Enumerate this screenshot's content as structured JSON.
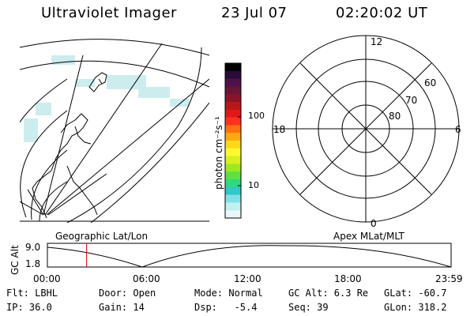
{
  "header": {
    "instrument": "Ultraviolet Imager",
    "date": "23 Jul 07",
    "time": "02:20:02 UT"
  },
  "left_panel": {
    "label": "Geographic Lat/Lon"
  },
  "colorbar": {
    "unit_label": "photon cm⁻²s⁻¹",
    "ticks": [
      "100",
      "10"
    ],
    "colors": [
      "#000000",
      "#2a0a3a",
      "#50104a",
      "#6a1438",
      "#8a1428",
      "#b81818",
      "#e01818",
      "#ff3020",
      "#ff7010",
      "#ffa810",
      "#ffd818",
      "#fff830",
      "#d8f020",
      "#a0e820",
      "#60e040",
      "#30d880",
      "#30c8c8",
      "#80e0e8",
      "#c0f0f0",
      "#e8f8f8"
    ]
  },
  "right_panel": {
    "label": "Apex MLat/MLT",
    "mlt_labels": [
      "12",
      "18",
      "6",
      "0"
    ],
    "lat_labels": [
      "60",
      "70",
      "80"
    ]
  },
  "altitude_plot": {
    "ylabel": "GC Alt",
    "yticks": [
      "9.0",
      "1.8"
    ],
    "xticks": [
      "00:00",
      "06:00",
      "12:00",
      "18:00",
      "23:59"
    ],
    "marker_time_hours": 2.33
  },
  "info": {
    "row1": [
      "Flt: LBHL",
      "Door: Open",
      "Mode: Normal",
      "GC Alt: 6.3 Re",
      "GLat: -60.7"
    ],
    "row2": [
      "IP: 36.0",
      "Gain: 14",
      "Dsp:   -5.4",
      "Seq: 39",
      "GLon: 318.2"
    ]
  }
}
